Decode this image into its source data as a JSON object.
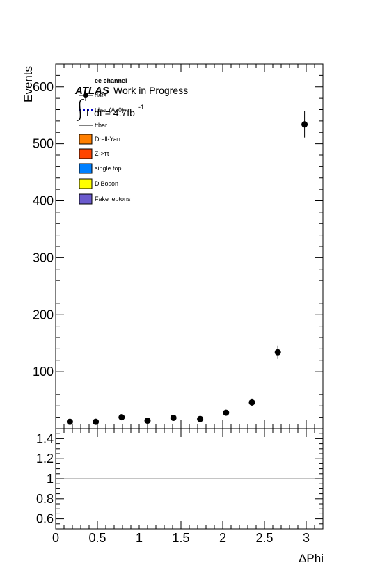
{
  "chart_data": [
    {
      "type": "scatter",
      "panel": "main",
      "ylabel": "Events",
      "xlim": [
        0,
        3.2
      ],
      "ylim": [
        0,
        640
      ],
      "yticks": [
        100,
        200,
        300,
        400,
        500,
        600
      ],
      "grid": false,
      "legend": "top-left",
      "header": {
        "channel": "ee channel",
        "experiment": "ATLAS",
        "status": "Work in Progress",
        "lumi_label": "L dt = 4.7fb",
        "lumi_exponent": "-1"
      },
      "legend_entries": [
        {
          "label": "data",
          "style": "marker"
        },
        {
          "label": "ttbar (Az0)",
          "style": "dashed",
          "color": "#0000cc"
        },
        {
          "label": "ttbar",
          "style": "line",
          "color": "#000000"
        },
        {
          "label": "Drell-Yan",
          "style": "box",
          "color": "#ff7f00"
        },
        {
          "label": "Z->ττ",
          "style": "box",
          "color": "#ff4500"
        },
        {
          "label": "single top",
          "style": "box",
          "color": "#0080ff"
        },
        {
          "label": "DiBoson",
          "style": "box",
          "color": "#ffff00"
        },
        {
          "label": "Fake leptons",
          "style": "box",
          "color": "#6a5acd"
        }
      ],
      "series": [
        {
          "name": "data",
          "x": [
            0.17,
            0.48,
            0.79,
            1.1,
            1.41,
            1.73,
            2.04,
            2.35,
            2.66,
            2.98
          ],
          "y": [
            12,
            12,
            20,
            14,
            19,
            17,
            28,
            46,
            134,
            534
          ],
          "yerr": [
            3.5,
            3.5,
            4.5,
            3.7,
            4.4,
            4.1,
            5.3,
            6.8,
            11.6,
            23.1
          ]
        }
      ]
    },
    {
      "type": "line",
      "panel": "ratio",
      "xlabel": "ΔPhi",
      "xlim": [
        0,
        3.2
      ],
      "ylim": [
        0.5,
        1.5
      ],
      "xticks": [
        0,
        0.5,
        1,
        1.5,
        2,
        2.5,
        3
      ],
      "xtick_labels": [
        "0",
        "0.5",
        "1",
        "1.5",
        "2",
        "2.5",
        "3"
      ],
      "yticks": [
        0.6,
        0.8,
        1,
        1.2,
        1.4
      ],
      "ytick_labels": [
        "0.6",
        "0.8",
        "1",
        "1.2",
        "1.4"
      ],
      "reference_line": 1
    }
  ]
}
